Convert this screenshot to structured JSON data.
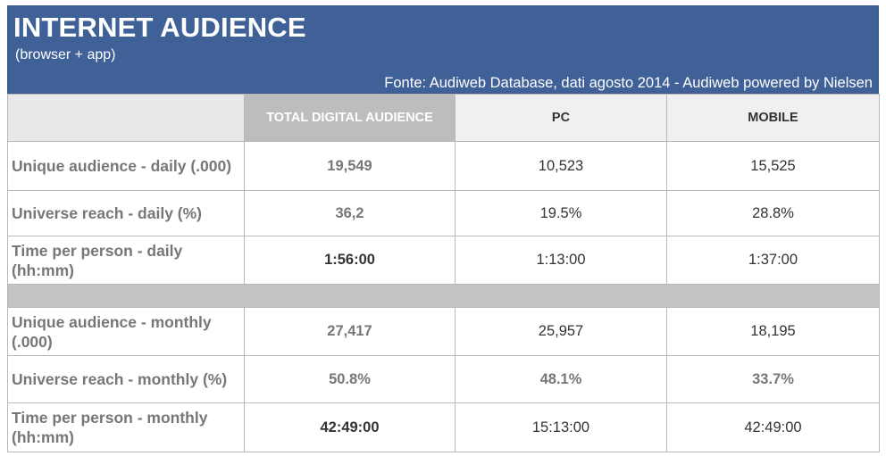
{
  "header": {
    "title": "INTERNET AUDIENCE",
    "subtitle": "(browser + app)",
    "source": "Fonte: Audiweb Database, dati agosto 2014 - Audiweb powered by Nielsen"
  },
  "columns": {
    "total": "TOTAL DIGITAL AUDIENCE",
    "pc": "PC",
    "mobile": "MOBILE"
  },
  "rows": [
    {
      "label": "Unique audience - daily (.000)",
      "total": "19,549",
      "pc": "10,523",
      "mobile": "15,525"
    },
    {
      "label": "Universe reach - daily (%)",
      "total": "36,2",
      "pc": "19.5%",
      "mobile": "28.8%"
    },
    {
      "label": "Time per person - daily (hh:mm)",
      "total": "1:56:00",
      "pc": "1:13:00",
      "mobile": "1:37:00"
    },
    {
      "label": "Unique audience - monthly (.000)",
      "total": "27,417",
      "pc": "25,957",
      "mobile": "18,195"
    },
    {
      "label": "Universe reach - monthly (%)",
      "total": "50.8%",
      "pc": "48.1%",
      "mobile": "33.7%"
    },
    {
      "label": "Time per person - monthly (hh:mm)",
      "total": "42:49:00",
      "pc": "15:13:00",
      "mobile": "42:49:00"
    }
  ]
}
